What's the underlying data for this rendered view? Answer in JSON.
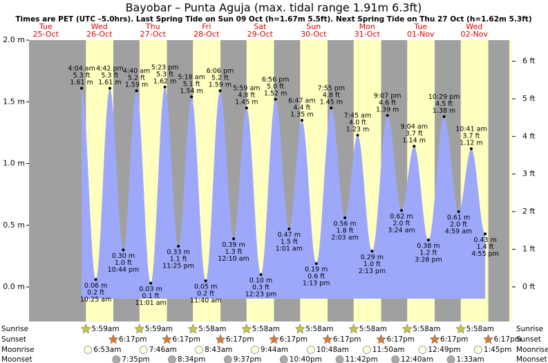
{
  "chart_data": {
    "type": "area",
    "title": "Bayobar – Punta Aguja (max. tidal range 1.91m 6.3ft)",
    "subtitle": "Times are PET (UTC –5.0hrs). Last Spring Tide on Sun 09 Oct (h=1.67m 5.5ft). Next Spring Tide on Thu 27 Oct (h=1.62m 5.3ft)",
    "color": "#9ea8fb",
    "ylim": [
      -0.28,
      2.0
    ],
    "yticks": [
      {
        "value": 0,
        "label": "0.0 m"
      },
      {
        "value": 0.5,
        "label": "0.5 m"
      },
      {
        "value": 1,
        "label": "1.0 m"
      },
      {
        "value": 1.5,
        "label": "1.5 m"
      },
      {
        "value": 2,
        "label": "2.0 m"
      }
    ],
    "y2lim": [
      -0.92,
      6.56
    ],
    "y2ticks": [
      {
        "value": 0,
        "label": "0 ft"
      },
      {
        "value": 1,
        "label": "1 ft"
      },
      {
        "value": 2,
        "label": "2 ft"
      },
      {
        "value": 3,
        "label": "3 ft"
      },
      {
        "value": 4,
        "label": "4 ft"
      },
      {
        "value": 5,
        "label": "5 ft"
      },
      {
        "value": 6,
        "label": "6 ft"
      }
    ],
    "days": [
      {
        "weekday": "Tue",
        "date": "25-Oct",
        "tides": []
      },
      {
        "weekday": "Wed",
        "date": "26-Oct",
        "tides": [
          {
            "time": "4:04 am",
            "value": 1.61,
            "value_label": "1.61 m",
            "feet": "5.3 ft"
          },
          {
            "time": "10:25 am",
            "value": 0.06,
            "value_label": "0.06 m",
            "feet": "0.2 ft"
          },
          {
            "time": "4:42 pm",
            "value": 1.61,
            "value_label": "1.61 m",
            "feet": "5.3 ft"
          },
          {
            "time": "10:44 pm",
            "value": 0.3,
            "value_label": "0.30 m",
            "feet": "1.0 ft"
          }
        ]
      },
      {
        "weekday": "Thu",
        "date": "27-Oct",
        "tides": [
          {
            "time": "4:40 am",
            "value": 1.59,
            "value_label": "1.59 m",
            "feet": "5.2 ft"
          },
          {
            "time": "11:01 am",
            "value": 0.03,
            "value_label": "0.03 m",
            "feet": "0.1 ft"
          },
          {
            "time": "5:23 pm",
            "value": 1.62,
            "value_label": "1.62 m",
            "feet": "5.3 ft"
          },
          {
            "time": "11:25 pm",
            "value": 0.33,
            "value_label": "0.33 m",
            "feet": "1.1 ft"
          }
        ]
      },
      {
        "weekday": "Fri",
        "date": "28-Oct",
        "tides": [
          {
            "time": "5:18 am",
            "value": 1.54,
            "value_label": "1.54 m",
            "feet": "5.1 ft"
          },
          {
            "time": "11:40 am",
            "value": 0.05,
            "value_label": "0.05 m",
            "feet": "0.2 ft"
          },
          {
            "time": "6:06 pm",
            "value": 1.59,
            "value_label": "1.59 m",
            "feet": "5.2 ft"
          }
        ]
      },
      {
        "weekday": "Sat",
        "date": "29-Oct",
        "tides": [
          {
            "time": "12:10 am",
            "value": 0.39,
            "value_label": "0.39 m",
            "feet": "1.3 ft"
          },
          {
            "time": "5:59 am",
            "value": 1.45,
            "value_label": "1.45 m",
            "feet": "4.8 ft"
          },
          {
            "time": "12:23 pm",
            "value": 0.1,
            "value_label": "0.10 m",
            "feet": "0.3 ft"
          },
          {
            "time": "6:56 pm",
            "value": 1.52,
            "value_label": "1.52 m",
            "feet": "5.0 ft"
          }
        ]
      },
      {
        "weekday": "Sun",
        "date": "30-Oct",
        "tides": [
          {
            "time": "1:01 am",
            "value": 0.47,
            "value_label": "0.47 m",
            "feet": "1.5 ft"
          },
          {
            "time": "6:47 am",
            "value": 1.35,
            "value_label": "1.35 m",
            "feet": "4.4 ft"
          },
          {
            "time": "1:13 pm",
            "value": 0.19,
            "value_label": "0.19 m",
            "feet": "0.6 ft"
          },
          {
            "time": "7:55 pm",
            "value": 1.45,
            "value_label": "1.45 m",
            "feet": "4.8 ft"
          }
        ]
      },
      {
        "weekday": "Mon",
        "date": "31-Oct",
        "tides": [
          {
            "time": "2:03 am",
            "value": 0.56,
            "value_label": "0.56 m",
            "feet": "1.8 ft"
          },
          {
            "time": "7:45 am",
            "value": 1.23,
            "value_label": "1.23 m",
            "feet": "4.0 ft"
          },
          {
            "time": "2:13 pm",
            "value": 0.29,
            "value_label": "0.29 m",
            "feet": "1.0 ft"
          },
          {
            "time": "9:07 pm",
            "value": 1.39,
            "value_label": "1.39 m",
            "feet": "4.6 ft"
          }
        ]
      },
      {
        "weekday": "Tue",
        "date": "01-Nov",
        "tides": [
          {
            "time": "3:24 am",
            "value": 0.62,
            "value_label": "0.62 m",
            "feet": "2.0 ft"
          },
          {
            "time": "9:04 am",
            "value": 1.14,
            "value_label": "1.14 m",
            "feet": "3.7 ft"
          },
          {
            "time": "3:28 pm",
            "value": 0.38,
            "value_label": "0.38 m",
            "feet": "1.2 ft"
          },
          {
            "time": "10:29 pm",
            "value": 1.38,
            "value_label": "1.38 m",
            "feet": "4.5 ft"
          }
        ]
      },
      {
        "weekday": "Wed",
        "date": "02-Nov",
        "tides": [
          {
            "time": "4:59 am",
            "value": 0.61,
            "value_label": "0.61 m",
            "feet": "2.0 ft"
          },
          {
            "time": "10:41 am",
            "value": 1.12,
            "value_label": "1.12 m",
            "feet": "3.7 ft"
          },
          {
            "time": "4:55 pm",
            "value": 0.43,
            "value_label": "0.43 m",
            "feet": "1.4 ft"
          }
        ]
      }
    ],
    "almanac": [
      {
        "label": "Sunrise",
        "events": [
          {
            "date": "26-Oct",
            "time": "5:59am"
          },
          {
            "date": "27-Oct",
            "time": "5:59am"
          },
          {
            "date": "28-Oct",
            "time": "5:58am"
          },
          {
            "date": "29-Oct",
            "time": "5:58am"
          },
          {
            "date": "30-Oct",
            "time": "5:58am"
          },
          {
            "date": "31-Oct",
            "time": "5:58am"
          },
          {
            "date": "01-Nov",
            "time": "5:58am"
          },
          {
            "date": "02-Nov",
            "time": "5:58am"
          }
        ]
      },
      {
        "label": "Sunset",
        "events": [
          {
            "date": "26-Oct",
            "time": "6:17pm"
          },
          {
            "date": "27-Oct",
            "time": "6:17pm"
          },
          {
            "date": "28-Oct",
            "time": "6:17pm"
          },
          {
            "date": "29-Oct",
            "time": "6:17pm"
          },
          {
            "date": "30-Oct",
            "time": "6:17pm"
          },
          {
            "date": "31-Oct",
            "time": "6:17pm"
          },
          {
            "date": "01-Nov",
            "time": "6:17pm"
          },
          {
            "date": "02-Nov",
            "time": "6:17pm"
          }
        ]
      },
      {
        "label": "Moonrise",
        "events": [
          {
            "date": "26-Oct",
            "time": "6:53am"
          },
          {
            "date": "27-Oct",
            "time": "7:46am"
          },
          {
            "date": "28-Oct",
            "time": "8:43am"
          },
          {
            "date": "29-Oct",
            "time": "9:44am"
          },
          {
            "date": "30-Oct",
            "time": "10:48am"
          },
          {
            "date": "31-Oct",
            "time": "11:50am"
          },
          {
            "date": "01-Nov",
            "time": "12:49pm"
          },
          {
            "date": "02-Nov",
            "time": "1:45pm"
          }
        ]
      },
      {
        "label": "Moonset",
        "events": [
          {
            "date": "26-Oct",
            "time": "7:35pm"
          },
          {
            "date": "27-Oct",
            "time": "8:34pm"
          },
          {
            "date": "28-Oct",
            "time": "9:37pm"
          },
          {
            "date": "29-Oct",
            "time": "10:40pm"
          },
          {
            "date": "30-Oct",
            "time": "11:42pm"
          },
          {
            "date": "01-Nov",
            "time": "12:40am"
          },
          {
            "date": "02-Nov",
            "time": "1:33am"
          }
        ]
      }
    ]
  }
}
